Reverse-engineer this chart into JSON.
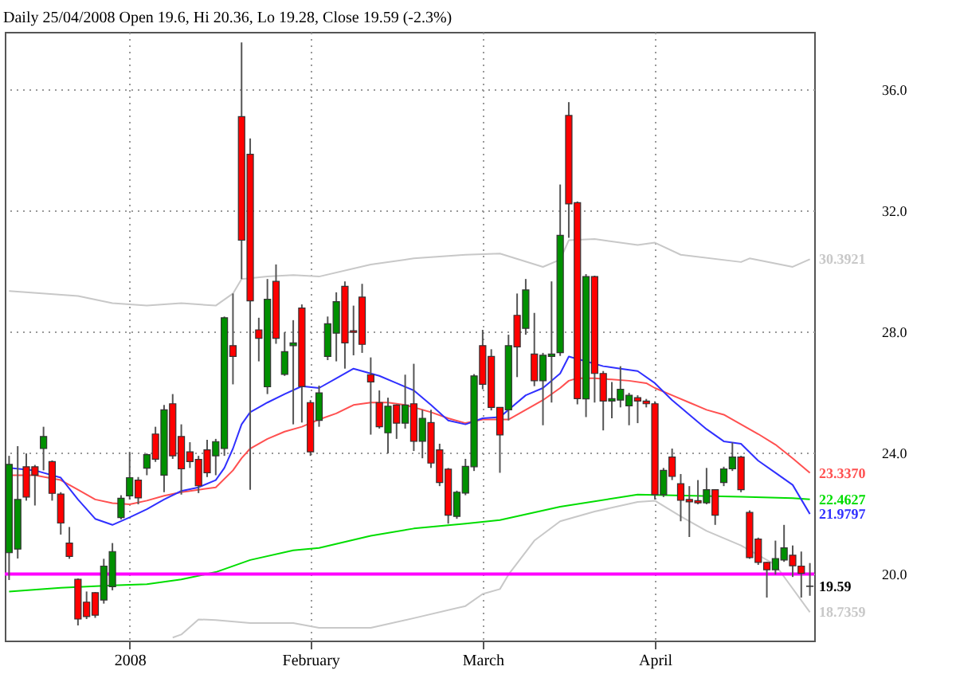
{
  "chart_data": {
    "type": "candlestick",
    "title": "Daily 25/04/2008 Open 19.6, Hi 20.36, Lo 19.28, Close 19.59 (-2.3%)",
    "categories": [
      null,
      null,
      null,
      null,
      null,
      null,
      null,
      null,
      null,
      null,
      null,
      null,
      null,
      null,
      "2008",
      null,
      null,
      null,
      null,
      null,
      null,
      null,
      null,
      null,
      null,
      null,
      null,
      null,
      null,
      null,
      null,
      null,
      null,
      null,
      null,
      "February",
      null,
      null,
      null,
      null,
      null,
      null,
      null,
      null,
      null,
      null,
      null,
      null,
      null,
      null,
      null,
      null,
      null,
      null,
      null,
      "March",
      null,
      null,
      null,
      null,
      null,
      null,
      null,
      null,
      null,
      null,
      null,
      null,
      null,
      null,
      null,
      null,
      null,
      null,
      null,
      "April",
      null,
      null,
      null,
      null,
      null,
      null,
      null,
      null,
      null,
      null,
      null,
      null,
      null,
      null,
      null,
      null,
      null,
      null
    ],
    "ohlc": [
      [
        20.7,
        23.9,
        19.8,
        23.62
      ],
      [
        20.82,
        24.22,
        20.51,
        22.46
      ],
      [
        23.54,
        23.98,
        22.42,
        22.54
      ],
      [
        23.54,
        23.6,
        22.26,
        23.26
      ],
      [
        24.14,
        24.86,
        23.42,
        24.54
      ],
      [
        23.71,
        23.75,
        22.42,
        22.66
      ],
      [
        22.64,
        22.7,
        21.3,
        21.68
      ],
      [
        21.02,
        21.55,
        20.5,
        20.58
      ],
      [
        19.82,
        19.85,
        18.3,
        18.51
      ],
      [
        19.07,
        19.42,
        18.51,
        18.59
      ],
      [
        19.38,
        19.4,
        18.55,
        18.64
      ],
      [
        19.14,
        20.5,
        19.02,
        20.26
      ],
      [
        19.58,
        21.02,
        19.46,
        20.74
      ],
      [
        21.86,
        22.6,
        21.8,
        22.5
      ],
      [
        22.58,
        24.03,
        22.46,
        23.18
      ],
      [
        23.1,
        23.2,
        22.3,
        22.51
      ],
      [
        23.49,
        23.98,
        23.26,
        23.94
      ],
      [
        24.62,
        24.86,
        23.7,
        23.79
      ],
      [
        23.26,
        25.58,
        22.7,
        25.42
      ],
      [
        25.62,
        25.94,
        23.8,
        23.9
      ],
      [
        24.54,
        24.94,
        22.62,
        23.47
      ],
      [
        24.03,
        24.35,
        23.5,
        23.71
      ],
      [
        23.78,
        23.9,
        22.67,
        22.91
      ],
      [
        24.1,
        24.43,
        23.2,
        23.34
      ],
      [
        23.9,
        24.46,
        23.26,
        24.37
      ],
      [
        24.14,
        28.5,
        23.9,
        28.46
      ],
      [
        27.54,
        29.26,
        26.26,
        27.18
      ],
      [
        35.1,
        37.55,
        29.74,
        31.02
      ],
      [
        33.86,
        34.38,
        22.78,
        29.02
      ],
      [
        28.06,
        28.46,
        27.02,
        27.78
      ],
      [
        26.18,
        29.74,
        25.94,
        29.07
      ],
      [
        29.66,
        30.22,
        27.6,
        27.78
      ],
      [
        26.59,
        27.98,
        26.54,
        27.34
      ],
      [
        27.54,
        28.38,
        24.94,
        27.63
      ],
      [
        28.78,
        28.9,
        25.0,
        26.19
      ],
      [
        25.66,
        25.74,
        23.9,
        24.03
      ],
      [
        25.07,
        26.22,
        24.86,
        25.98
      ],
      [
        27.18,
        28.5,
        27.06,
        28.26
      ],
      [
        27.95,
        29.3,
        27.02,
        28.99
      ],
      [
        29.5,
        29.66,
        26.78,
        27.63
      ],
      [
        28.03,
        28.86,
        27.22,
        27.98
      ],
      [
        29.14,
        29.58,
        27.3,
        27.58
      ],
      [
        26.58,
        27.15,
        24.6,
        26.34
      ],
      [
        25.66,
        26.06,
        24.8,
        24.86
      ],
      [
        24.66,
        25.82,
        23.98,
        25.54
      ],
      [
        25.58,
        25.6,
        24.46,
        24.98
      ],
      [
        24.98,
        26.58,
        24.8,
        25.58
      ],
      [
        25.62,
        26.94,
        24.06,
        24.38
      ],
      [
        24.38,
        25.42,
        23.82,
        25.14
      ],
      [
        25.0,
        25.42,
        23.5,
        23.66
      ],
      [
        24.1,
        24.3,
        22.9,
        23.02
      ],
      [
        23.46,
        23.5,
        21.66,
        21.94
      ],
      [
        21.9,
        22.75,
        21.82,
        22.7
      ],
      [
        22.67,
        23.8,
        22.6,
        23.55
      ],
      [
        23.54,
        26.6,
        23.4,
        26.54
      ],
      [
        27.54,
        28.06,
        26.1,
        26.26
      ],
      [
        27.18,
        27.42,
        25.4,
        25.5
      ],
      [
        25.5,
        25.5,
        23.34,
        24.59
      ],
      [
        25.42,
        27.9,
        25.07,
        27.54
      ],
      [
        28.54,
        29.26,
        26.5,
        27.5
      ],
      [
        28.11,
        29.74,
        27.9,
        29.38
      ],
      [
        27.26,
        28.62,
        26.2,
        26.38
      ],
      [
        26.38,
        27.3,
        24.91,
        27.22
      ],
      [
        27.18,
        29.66,
        25.66,
        27.26
      ],
      [
        27.31,
        32.86,
        27.2,
        31.18
      ],
      [
        35.14,
        35.58,
        31.1,
        32.22
      ],
      [
        32.26,
        32.3,
        25.6,
        25.79
      ],
      [
        25.78,
        29.9,
        25.18,
        29.82
      ],
      [
        29.82,
        29.85,
        25.66,
        26.62
      ],
      [
        26.62,
        26.7,
        24.74,
        25.71
      ],
      [
        25.71,
        26.34,
        25.14,
        25.79
      ],
      [
        25.74,
        26.86,
        25.5,
        26.1
      ],
      [
        25.55,
        25.98,
        24.91,
        25.9
      ],
      [
        25.82,
        25.9,
        24.98,
        25.71
      ],
      [
        25.71,
        25.78,
        25.5,
        25.62
      ],
      [
        25.62,
        25.7,
        22.46,
        22.62
      ],
      [
        22.62,
        23.5,
        22.54,
        23.42
      ],
      [
        23.86,
        24.14,
        23.1,
        23.22
      ],
      [
        22.98,
        23.3,
        21.74,
        22.43
      ],
      [
        22.46,
        22.9,
        21.22,
        22.38
      ],
      [
        22.42,
        23.1,
        22.3,
        22.35
      ],
      [
        22.35,
        23.5,
        22.3,
        22.78
      ],
      [
        22.78,
        22.8,
        21.62,
        21.94
      ],
      [
        23.02,
        23.54,
        22.9,
        23.47
      ],
      [
        23.47,
        24.34,
        23.4,
        23.86
      ],
      [
        23.86,
        23.9,
        22.7,
        22.78
      ],
      [
        22.03,
        22.1,
        20.5,
        20.54
      ],
      [
        21.15,
        21.2,
        20.3,
        20.38
      ],
      [
        20.38,
        20.4,
        19.22,
        20.14
      ],
      [
        20.14,
        21.1,
        19.98,
        20.51
      ],
      [
        20.46,
        21.62,
        20.4,
        20.86
      ],
      [
        20.62,
        20.94,
        19.9,
        20.27
      ],
      [
        20.26,
        20.74,
        19.22,
        20.02
      ],
      [
        19.6,
        20.36,
        19.28,
        19.59
      ]
    ],
    "colors": [
      "#009000",
      "#009000",
      "#ff0000",
      "#ff0000",
      "#009000",
      "#ff0000",
      "#ff0000",
      "#ff0000",
      "#ff0000",
      "#ff0000",
      "#ff0000",
      "#009000",
      "#009000",
      "#009000",
      "#009000",
      "#ff0000",
      "#009000",
      "#ff0000",
      "#009000",
      "#ff0000",
      "#ff0000",
      "#ff0000",
      "#ff0000",
      "#ff0000",
      "#009000",
      "#009000",
      "#ff0000",
      "#ff0000",
      "#ff0000",
      "#ff0000",
      "#009000",
      "#ff0000",
      "#009000",
      "#009000",
      "#ff0000",
      "#ff0000",
      "#009000",
      "#009000",
      "#009000",
      "#ff0000",
      "#ff0000",
      "#ff0000",
      "#ff0000",
      "#ff0000",
      "#009000",
      "#ff0000",
      "#009000",
      "#ff0000",
      "#009000",
      "#ff0000",
      "#ff0000",
      "#ff0000",
      "#009000",
      "#009000",
      "#009000",
      "#ff0000",
      "#ff0000",
      "#ff0000",
      "#009000",
      "#ff0000",
      "#009000",
      "#ff0000",
      "#009000",
      "#009000",
      "#009000",
      "#ff0000",
      "#ff0000",
      "#009000",
      "#ff0000",
      "#ff0000",
      "#009000",
      "#009000",
      "#009000",
      "#ff0000",
      "#ff0000",
      "#ff0000",
      "#009000",
      "#ff0000",
      "#ff0000",
      "#ff0000",
      "#ff0000",
      "#009000",
      "#ff0000",
      "#009000",
      "#009000",
      "#ff0000",
      "#ff0000",
      "#ff0000",
      "#ff0000",
      "#009000",
      "#009000",
      "#ff0000",
      "#ff0000",
      "#ff0000"
    ],
    "series": [
      {
        "type": "line",
        "color": "#c8c8c8",
        "values": [
          29.34,
          null,
          null,
          null,
          null,
          null,
          null,
          null,
          29.18,
          null,
          null,
          null,
          28.94,
          null,
          null,
          null,
          28.86,
          null,
          null,
          null,
          28.94,
          null,
          null,
          null,
          28.86,
          null,
          29.26,
          29.74,
          null,
          null,
          29.82,
          null,
          null,
          29.87,
          null,
          null,
          29.82,
          null,
          null,
          null,
          null,
          null,
          30.22,
          null,
          null,
          null,
          null,
          30.42,
          null,
          null,
          null,
          null,
          null,
          30.54,
          null,
          null,
          null,
          30.58,
          null,
          null,
          null,
          null,
          30.14,
          null,
          30.38,
          31.02,
          null,
          null,
          31.06,
          null,
          null,
          null,
          null,
          30.86,
          null,
          30.94,
          null,
          null,
          30.54,
          null,
          null,
          null,
          null,
          null,
          null,
          30.3,
          30.42,
          null,
          null,
          null,
          null,
          30.14,
          null,
          30.3921
        ],
        "value_labels": [
          null,
          null,
          null,
          null,
          null,
          null,
          null,
          null,
          null,
          null,
          null,
          null,
          null,
          null,
          null,
          null,
          null,
          null,
          null,
          null,
          null,
          null,
          null,
          null,
          null,
          null,
          null,
          null,
          null,
          null,
          null,
          null,
          null,
          null,
          null,
          null,
          null,
          null,
          null,
          null,
          null,
          null,
          null,
          null,
          null,
          null,
          null,
          null,
          null,
          null,
          null,
          null,
          null,
          null,
          null,
          null,
          null,
          null,
          null,
          null,
          null,
          null,
          null,
          null,
          null,
          null,
          null,
          null,
          null,
          null,
          null,
          null,
          null,
          null,
          null,
          null,
          null,
          null,
          null,
          null,
          null,
          null,
          null,
          null,
          null,
          null,
          null,
          null,
          null,
          null,
          null,
          null,
          null,
          "30.3921"
        ]
      },
      {
        "type": "line",
        "color": "#c8c8c8",
        "values": [
          null,
          null,
          null,
          null,
          null,
          null,
          null,
          null,
          null,
          null,
          null,
          null,
          null,
          null,
          null,
          null,
          null,
          null,
          null,
          17.9,
          18.0,
          null,
          18.5,
          null,
          18.48,
          null,
          null,
          null,
          18.38,
          null,
          null,
          null,
          null,
          18.38,
          null,
          null,
          18.22,
          null,
          null,
          null,
          null,
          null,
          18.22,
          null,
          null,
          null,
          null,
          18.54,
          null,
          null,
          null,
          null,
          null,
          18.94,
          null,
          19.34,
          null,
          19.5,
          19.98,
          null,
          null,
          21.1,
          null,
          null,
          21.74,
          null,
          null,
          null,
          22.06,
          null,
          null,
          null,
          null,
          22.38,
          null,
          22.42,
          null,
          null,
          21.9,
          null,
          null,
          21.42,
          null,
          null,
          null,
          20.94,
          null,
          null,
          null,
          20.3,
          null,
          null,
          null,
          18.7359
        ],
        "value_labels": [
          null,
          null,
          null,
          null,
          null,
          null,
          null,
          null,
          null,
          null,
          null,
          null,
          null,
          null,
          null,
          null,
          null,
          null,
          null,
          null,
          null,
          null,
          null,
          null,
          null,
          null,
          null,
          null,
          null,
          null,
          null,
          null,
          null,
          null,
          null,
          null,
          null,
          null,
          null,
          null,
          null,
          null,
          null,
          null,
          null,
          null,
          null,
          null,
          null,
          null,
          null,
          null,
          null,
          null,
          null,
          null,
          null,
          null,
          null,
          null,
          null,
          null,
          null,
          null,
          null,
          null,
          null,
          null,
          null,
          null,
          null,
          null,
          null,
          null,
          null,
          null,
          null,
          null,
          null,
          null,
          null,
          null,
          null,
          null,
          null,
          null,
          null,
          null,
          null,
          null,
          null,
          null,
          null,
          "18.7359"
        ]
      },
      {
        "type": "line",
        "color": "#00dd00",
        "values": [
          19.42,
          null,
          null,
          null,
          null,
          null,
          19.54,
          null,
          null,
          null,
          null,
          null,
          19.62,
          null,
          null,
          null,
          19.66,
          null,
          null,
          null,
          19.82,
          null,
          null,
          null,
          20.06,
          null,
          null,
          null,
          20.46,
          null,
          null,
          null,
          null,
          20.78,
          null,
          null,
          20.86,
          null,
          null,
          null,
          null,
          null,
          21.26,
          null,
          null,
          null,
          null,
          21.5,
          null,
          null,
          null,
          null,
          null,
          21.66,
          null,
          null,
          null,
          21.78,
          null,
          null,
          null,
          null,
          null,
          null,
          22.22,
          null,
          null,
          null,
          null,
          null,
          null,
          null,
          null,
          22.62,
          null,
          22.61,
          null,
          null,
          null,
          null,
          null,
          null,
          null,
          null,
          null,
          22.55,
          null,
          null,
          null,
          null,
          null,
          22.5,
          null,
          22.4627
        ],
        "value_labels": [
          null,
          null,
          null,
          null,
          null,
          null,
          null,
          null,
          null,
          null,
          null,
          null,
          null,
          null,
          null,
          null,
          null,
          null,
          null,
          null,
          null,
          null,
          null,
          null,
          null,
          null,
          null,
          null,
          null,
          null,
          null,
          null,
          null,
          null,
          null,
          null,
          null,
          null,
          null,
          null,
          null,
          null,
          null,
          null,
          null,
          null,
          null,
          null,
          null,
          null,
          null,
          null,
          null,
          null,
          null,
          null,
          null,
          null,
          null,
          null,
          null,
          null,
          null,
          null,
          null,
          null,
          null,
          null,
          null,
          null,
          null,
          null,
          null,
          null,
          null,
          null,
          null,
          null,
          null,
          null,
          null,
          null,
          null,
          null,
          null,
          null,
          null,
          null,
          null,
          null,
          null,
          null,
          null,
          "22.4627"
        ]
      },
      {
        "type": "line",
        "color": "#ff5050",
        "values": [
          23.26,
          null,
          null,
          23.26,
          null,
          null,
          23.1,
          null,
          22.78,
          null,
          22.46,
          null,
          22.34,
          null,
          22.3,
          null,
          22.42,
          null,
          22.58,
          null,
          22.7,
          null,
          22.78,
          null,
          22.86,
          null,
          23.42,
          23.82,
          24.14,
          null,
          24.46,
          null,
          24.7,
          null,
          24.86,
          null,
          25.1,
          null,
          25.3,
          null,
          25.58,
          null,
          25.66,
          null,
          25.66,
          null,
          25.58,
          25.5,
          null,
          25.34,
          null,
          25.14,
          null,
          24.98,
          null,
          25.1,
          null,
          null,
          25.1,
          null,
          25.42,
          null,
          25.74,
          null,
          26.14,
          26.38,
          26.46,
          null,
          26.46,
          null,
          26.42,
          null,
          26.38,
          null,
          26.3,
          26.14,
          null,
          25.9,
          null,
          25.66,
          null,
          25.42,
          null,
          25.26,
          null,
          24.94,
          null,
          24.62,
          null,
          24.27,
          null,
          23.82,
          null,
          23.337
        ],
        "value_labels": [
          null,
          null,
          null,
          null,
          null,
          null,
          null,
          null,
          null,
          null,
          null,
          null,
          null,
          null,
          null,
          null,
          null,
          null,
          null,
          null,
          null,
          null,
          null,
          null,
          null,
          null,
          null,
          null,
          null,
          null,
          null,
          null,
          null,
          null,
          null,
          null,
          null,
          null,
          null,
          null,
          null,
          null,
          null,
          null,
          null,
          null,
          null,
          null,
          null,
          null,
          null,
          null,
          null,
          null,
          null,
          null,
          null,
          null,
          null,
          null,
          null,
          null,
          null,
          null,
          null,
          null,
          null,
          null,
          null,
          null,
          null,
          null,
          null,
          null,
          null,
          null,
          null,
          null,
          null,
          null,
          null,
          null,
          null,
          null,
          null,
          null,
          null,
          null,
          null,
          null,
          null,
          null,
          null,
          "23.3370"
        ]
      },
      {
        "type": "line",
        "color": "#3030ff",
        "values": [
          23.5,
          null,
          null,
          23.42,
          null,
          null,
          23.18,
          null,
          22.46,
          null,
          21.82,
          null,
          21.62,
          null,
          21.87,
          null,
          22.14,
          null,
          22.46,
          null,
          22.74,
          null,
          22.86,
          null,
          23.1,
          23.5,
          24.14,
          24.94,
          25.34,
          null,
          25.66,
          null,
          25.94,
          null,
          26.2,
          null,
          26.14,
          null,
          26.46,
          null,
          26.78,
          null,
          null,
          26.54,
          null,
          26.3,
          null,
          26.06,
          null,
          25.58,
          null,
          25.07,
          null,
          24.94,
          null,
          25.14,
          null,
          25.18,
          25.42,
          null,
          25.9,
          null,
          26.14,
          null,
          26.62,
          27.18,
          null,
          27.02,
          null,
          26.86,
          null,
          26.78,
          null,
          26.7,
          null,
          26.3,
          null,
          25.74,
          null,
          25.26,
          null,
          24.78,
          null,
          24.38,
          null,
          24.3,
          null,
          23.74,
          null,
          23.34,
          null,
          22.94,
          null,
          21.9797
        ],
        "value_labels": [
          null,
          null,
          null,
          null,
          null,
          null,
          null,
          null,
          null,
          null,
          null,
          null,
          null,
          null,
          null,
          null,
          null,
          null,
          null,
          null,
          null,
          null,
          null,
          null,
          null,
          null,
          null,
          null,
          null,
          null,
          null,
          null,
          null,
          null,
          null,
          null,
          null,
          null,
          null,
          null,
          null,
          null,
          null,
          null,
          null,
          null,
          null,
          null,
          null,
          null,
          null,
          null,
          null,
          null,
          null,
          null,
          null,
          null,
          null,
          null,
          null,
          null,
          null,
          null,
          null,
          null,
          null,
          null,
          null,
          null,
          null,
          null,
          null,
          null,
          null,
          null,
          null,
          null,
          null,
          null,
          null,
          null,
          null,
          null,
          null,
          null,
          null,
          null,
          null,
          null,
          null,
          null,
          null,
          "21.9797"
        ]
      }
    ],
    "ylim": [
      17.8,
      37.9
    ],
    "yticks": [
      {
        "value": 20,
        "label": "20.0"
      },
      {
        "value": 24,
        "label": "24.0"
      },
      {
        "value": 28,
        "label": "28.0"
      },
      {
        "value": 32,
        "label": "32.0"
      },
      {
        "value": 36,
        "label": "36.0"
      }
    ],
    "grid": true,
    "ref_lines": [
      {
        "axis": "y",
        "value": 20,
        "color": "#ff00ff"
      }
    ],
    "value_labels": [
      null,
      null,
      null,
      null,
      null,
      null,
      null,
      null,
      null,
      null,
      null,
      null,
      null,
      null,
      null,
      null,
      null,
      null,
      null,
      null,
      null,
      null,
      null,
      null,
      null,
      null,
      null,
      null,
      null,
      null,
      null,
      null,
      null,
      null,
      null,
      null,
      null,
      null,
      null,
      null,
      null,
      null,
      null,
      null,
      null,
      null,
      null,
      null,
      null,
      null,
      null,
      null,
      null,
      null,
      null,
      null,
      null,
      null,
      null,
      null,
      null,
      null,
      null,
      null,
      null,
      null,
      null,
      null,
      null,
      null,
      null,
      null,
      null,
      null,
      null,
      null,
      null,
      null,
      null,
      null,
      null,
      null,
      null,
      null,
      null,
      null,
      null,
      null,
      null,
      null,
      null,
      null,
      null,
      "19.59"
    ]
  }
}
